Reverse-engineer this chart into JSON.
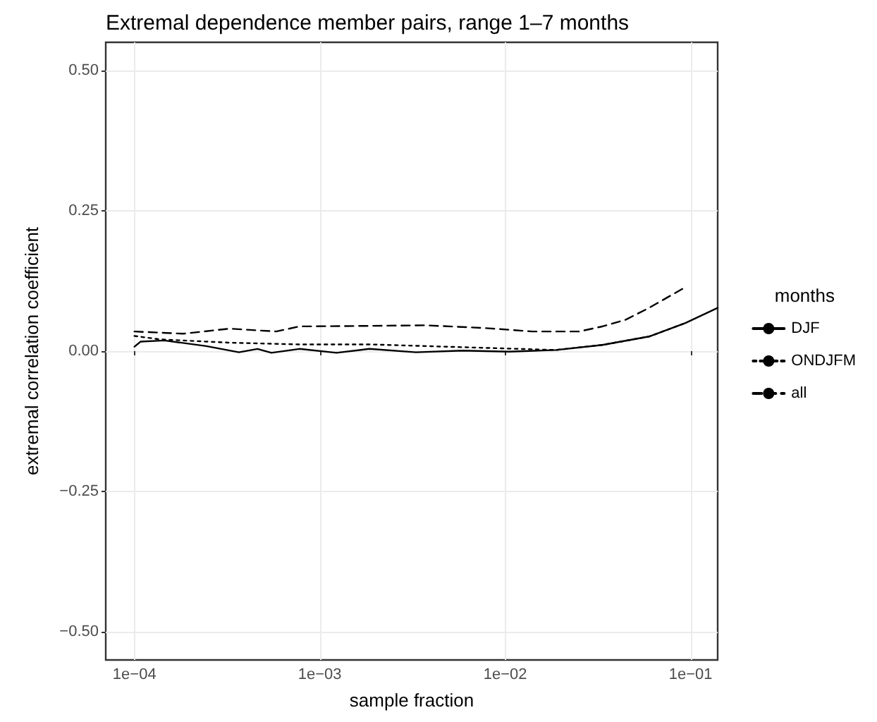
{
  "chart_data": {
    "type": "line",
    "title": "Extremal dependence member pairs, range 1–7 months",
    "xlabel": "sample fraction",
    "ylabel": "extremal correlation coefficient",
    "legend_title": "months",
    "log": "x",
    "grid": true,
    "legend": "right",
    "marker": "none",
    "xlim": [
      7e-05,
      0.14
    ],
    "xticks": [
      {
        "value": 0.0001,
        "label": "1e−04"
      },
      {
        "value": 0.001,
        "label": "1e−03"
      },
      {
        "value": 0.01,
        "label": "1e−02"
      },
      {
        "value": 0.1,
        "label": "1e−01"
      }
    ],
    "ylim": [
      -0.55,
      0.55
    ],
    "yticks": [
      {
        "value": -0.5,
        "label": "−0.50"
      },
      {
        "value": -0.25,
        "label": "−0.25"
      },
      {
        "value": 0,
        "label": "0.00"
      },
      {
        "value": 0.25,
        "label": "0.25"
      },
      {
        "value": 0.5,
        "label": "0.50"
      }
    ],
    "series": [
      {
        "name": "DJF",
        "color": "#000000",
        "line_style": "solid",
        "x": [
          0.0001,
          0.000108,
          0.000145,
          0.000244,
          0.000366,
          0.000461,
          0.000548,
          0.000776,
          0.00123,
          0.00185,
          0.0033,
          0.00589,
          0.0105,
          0.0188,
          0.0334,
          0.0597,
          0.0938,
          0.14
        ],
        "values": [
          0.008,
          0.017,
          0.019,
          0.009,
          -0.002,
          0.004,
          -0.003,
          0.004,
          -0.003,
          0.004,
          -0.002,
          0.001,
          -0.001,
          0.002,
          0.011,
          0.026,
          0.05,
          0.077
        ]
      },
      {
        "name": "ONDJFM",
        "color": "#000000",
        "line_style": "dotted",
        "x": [
          0.0001,
          0.000137,
          0.000326,
          0.000776,
          0.00185,
          0.00589,
          0.0188,
          0.0334,
          0.0597,
          0.0938
        ],
        "values": [
          0.027,
          0.021,
          0.015,
          0.012,
          0.012,
          0.007,
          0.002,
          0.011,
          0.026,
          0.05
        ]
      },
      {
        "name": "all",
        "color": "#000000",
        "line_style": "dashed",
        "x": [
          0.0001,
          0.000183,
          0.000326,
          0.000581,
          0.000776,
          0.00185,
          0.00371,
          0.00787,
          0.014,
          0.0251,
          0.0334,
          0.0447,
          0.0597,
          0.0938
        ],
        "values": [
          0.035,
          0.031,
          0.04,
          0.035,
          0.044,
          0.045,
          0.046,
          0.041,
          0.035,
          0.035,
          0.044,
          0.056,
          0.077,
          0.114
        ]
      }
    ]
  }
}
